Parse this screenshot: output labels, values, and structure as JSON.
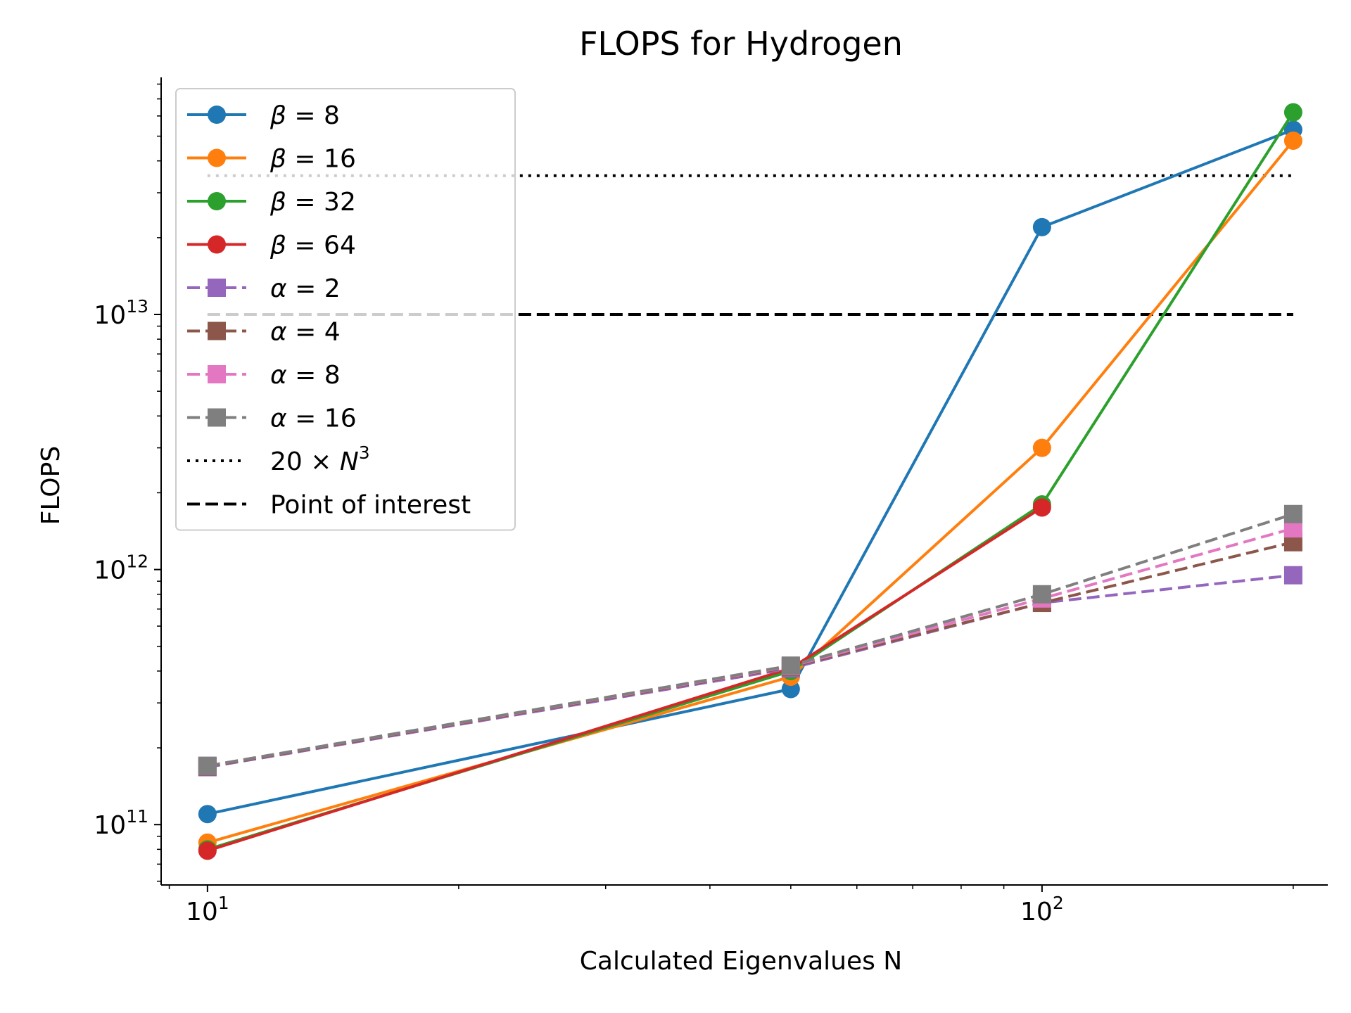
{
  "chart_data": {
    "type": "line",
    "title": "FLOPS for Hydrogen",
    "xlabel": "Calculated Eigenvalues N",
    "ylabel": "FLOPS",
    "x_scale": "log",
    "y_scale": "log",
    "xlim": [
      8.8,
      220
    ],
    "ylim": [
      58000000000,
      85000000000000
    ],
    "x_ticks": [
      {
        "value": 10,
        "base": "10",
        "exp": "1"
      },
      {
        "value": 100,
        "base": "10",
        "exp": "2"
      }
    ],
    "y_ticks": [
      {
        "value": 100000000000,
        "base": "10",
        "exp": "11"
      },
      {
        "value": 1000000000000,
        "base": "10",
        "exp": "12"
      },
      {
        "value": 10000000000000,
        "base": "10",
        "exp": "13"
      }
    ],
    "grid": false,
    "legend_position": "top-left",
    "x": [
      10,
      50,
      100,
      200
    ],
    "series": [
      {
        "name": "β = 8",
        "sym": "β",
        "val": "8",
        "color": "#1f77b4",
        "style": "solid",
        "marker": "circle",
        "values": [
          110000000000,
          340000000000,
          22000000000000,
          53000000000000
        ]
      },
      {
        "name": "β = 16",
        "sym": "β",
        "val": "16",
        "color": "#ff7f0e",
        "style": "solid",
        "marker": "circle",
        "values": [
          85000000000,
          380000000000,
          3000000000000,
          48000000000000
        ]
      },
      {
        "name": "β = 32",
        "sym": "β",
        "val": "32",
        "color": "#2ca02c",
        "style": "solid",
        "marker": "circle",
        "values": [
          80000000000,
          400000000000,
          1800000000000,
          62000000000000
        ]
      },
      {
        "name": "β = 64",
        "sym": "β",
        "val": "64",
        "color": "#d62728",
        "style": "solid",
        "marker": "circle",
        "values": [
          79000000000,
          410000000000,
          1750000000000,
          null
        ]
      },
      {
        "name": "α = 2",
        "sym": "α",
        "val": "2",
        "color": "#9467bd",
        "style": "dashed",
        "marker": "square",
        "values": [
          168000000000,
          410000000000,
          740000000000,
          950000000000
        ]
      },
      {
        "name": "α = 4",
        "sym": "α",
        "val": "4",
        "color": "#8c564b",
        "style": "dashed",
        "marker": "square",
        "values": [
          169000000000,
          415000000000,
          740000000000,
          1280000000000
        ]
      },
      {
        "name": "α = 8",
        "sym": "α",
        "val": "8",
        "color": "#e377c2",
        "style": "dashed",
        "marker": "square",
        "values": [
          170000000000,
          418000000000,
          770000000000,
          1450000000000
        ]
      },
      {
        "name": "α = 16",
        "sym": "α",
        "val": "16",
        "color": "#7f7f7f",
        "style": "dashed",
        "marker": "square",
        "values": [
          170000000000,
          420000000000,
          800000000000,
          1650000000000
        ]
      }
    ],
    "reference_lines": [
      {
        "name": "20 × N^3",
        "label_a": "20 × ",
        "label_b": "N",
        "label_c": "3",
        "color": "#000000",
        "style": "dotted",
        "y": 35000000000000,
        "x_range": [
          10,
          200
        ]
      },
      {
        "name": "Point of interest",
        "label_a": "Point of interest",
        "color": "#000000",
        "style": "dashed",
        "y": 10000000000000,
        "x_range": [
          10,
          200
        ]
      }
    ]
  }
}
